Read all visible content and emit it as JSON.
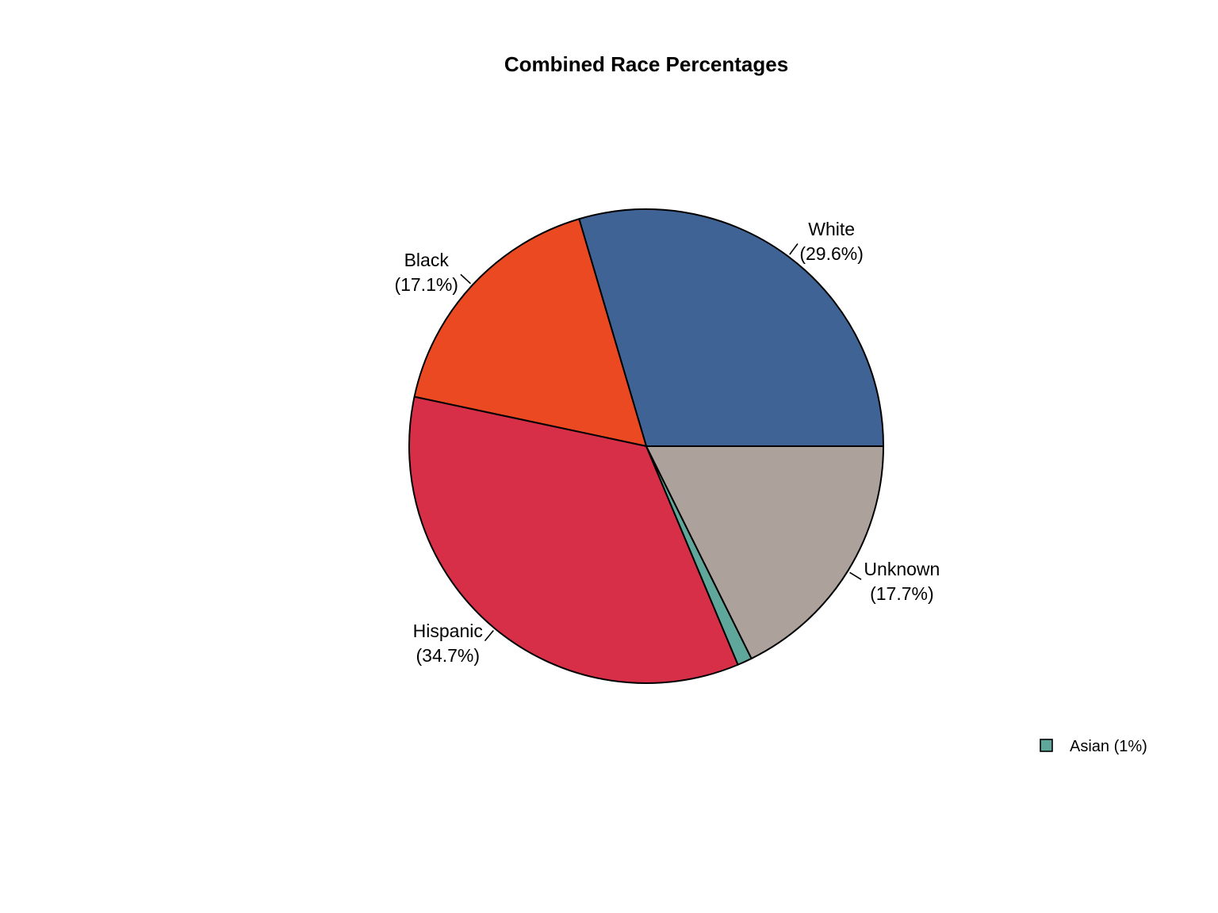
{
  "chart_data": {
    "type": "pie",
    "title": "Combined Race Percentages",
    "slices": [
      {
        "name": "White",
        "value": 29.6,
        "value_label": "(29.6%)",
        "color": "#3E6394"
      },
      {
        "name": "Black",
        "value": 17.1,
        "value_label": "(17.1%)",
        "color": "#EA4922"
      },
      {
        "name": "Hispanic",
        "value": 34.7,
        "value_label": "(34.7%)",
        "color": "#D72F47"
      },
      {
        "name": "Asian",
        "value": 1.0,
        "value_label": "(1%)",
        "color": "#5FA69B"
      },
      {
        "name": "Unknown",
        "value": 17.7,
        "value_label": "(17.7%)",
        "color": "#ADA19C"
      }
    ],
    "start_angle_deg": 0,
    "direction": "counterclockwise",
    "legend": {
      "position": "bottom-right",
      "entries": [
        {
          "label": "Asian (1%)",
          "color": "#5FA69B"
        }
      ]
    }
  }
}
